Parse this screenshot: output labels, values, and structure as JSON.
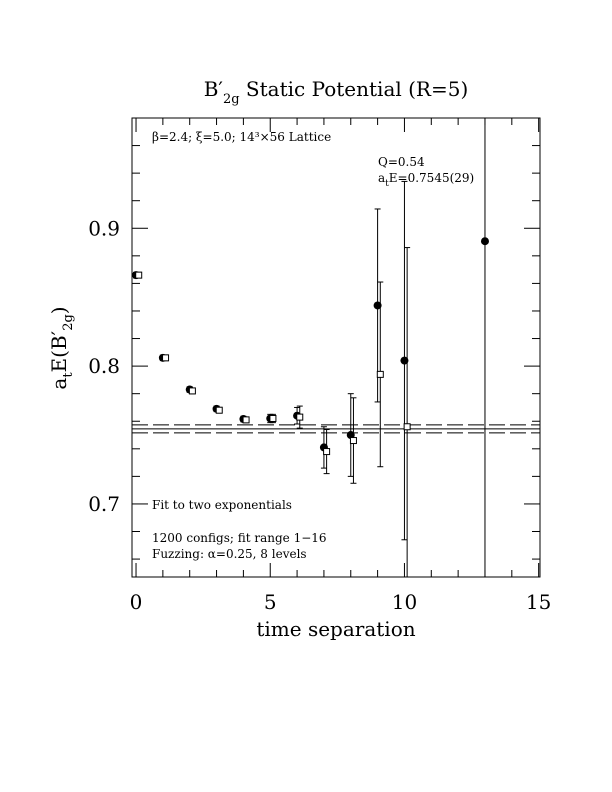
{
  "chart_data": {
    "type": "scatter",
    "title": {
      "base": "B′",
      "sub": "2g",
      "rest": " Static Potential (R=5)"
    },
    "x_label": "time separation",
    "y_label": {
      "base": "a",
      "sub1": "t",
      "mid": "E(B′",
      "sub2": "2g",
      "end": ")"
    },
    "annotations": [
      "β=2.4; ξ=5.0; 14³×56 Lattice",
      "Q=0.54",
      "Fit to two exponentials",
      "1200 configs; fit range 1−16",
      "Fuzzing: α=0.25, 8 levels"
    ],
    "fit_label": {
      "base": "a",
      "sub": "t",
      "rest": "E=0.7545(29)"
    },
    "fit": {
      "value": 0.7545,
      "error": 0.0029
    },
    "xlim": [
      -0.15,
      15.05
    ],
    "ylim": [
      0.647,
      0.98
    ],
    "xticks": [
      0,
      5,
      10,
      15
    ],
    "yticks": [
      0.7,
      0.8,
      0.9
    ],
    "x_minor_ticks": [
      1,
      2,
      3,
      4,
      6,
      7,
      8,
      9,
      11,
      12,
      13,
      14
    ],
    "y_minor_ticks": [
      0.66,
      0.68,
      0.72,
      0.74,
      0.76,
      0.78,
      0.82,
      0.84,
      0.86,
      0.88,
      0.92,
      0.94,
      0.96
    ],
    "series": [
      {
        "marker": "circle",
        "color": "#000000",
        "x": [
          0,
          1,
          2,
          3,
          4,
          5,
          6,
          7,
          8,
          9,
          10,
          13
        ],
        "values": [
          0.866,
          0.806,
          0.783,
          0.769,
          0.7616,
          0.762,
          0.764,
          0.741,
          0.75,
          0.844,
          0.804,
          0.8906
        ],
        "errors": [
          0.002,
          0.002,
          0.002,
          0.002,
          0.002,
          0.003,
          0.006,
          0.015,
          0.03,
          0.07,
          0.13,
          0.3
        ]
      },
      {
        "marker": "square",
        "color": "#000000",
        "x": [
          0.1,
          1.1,
          2.1,
          3.1,
          4.1,
          5.1,
          6.1,
          7.1,
          8.1,
          9.1,
          10.1
        ],
        "values": [
          0.866,
          0.806,
          0.782,
          0.768,
          0.761,
          0.762,
          0.763,
          0.738,
          0.746,
          0.794,
          0.756
        ],
        "errors": [
          0.002,
          0.002,
          0.002,
          0.002,
          0.002,
          0.003,
          0.008,
          0.016,
          0.031,
          0.067,
          0.13
        ]
      }
    ]
  }
}
